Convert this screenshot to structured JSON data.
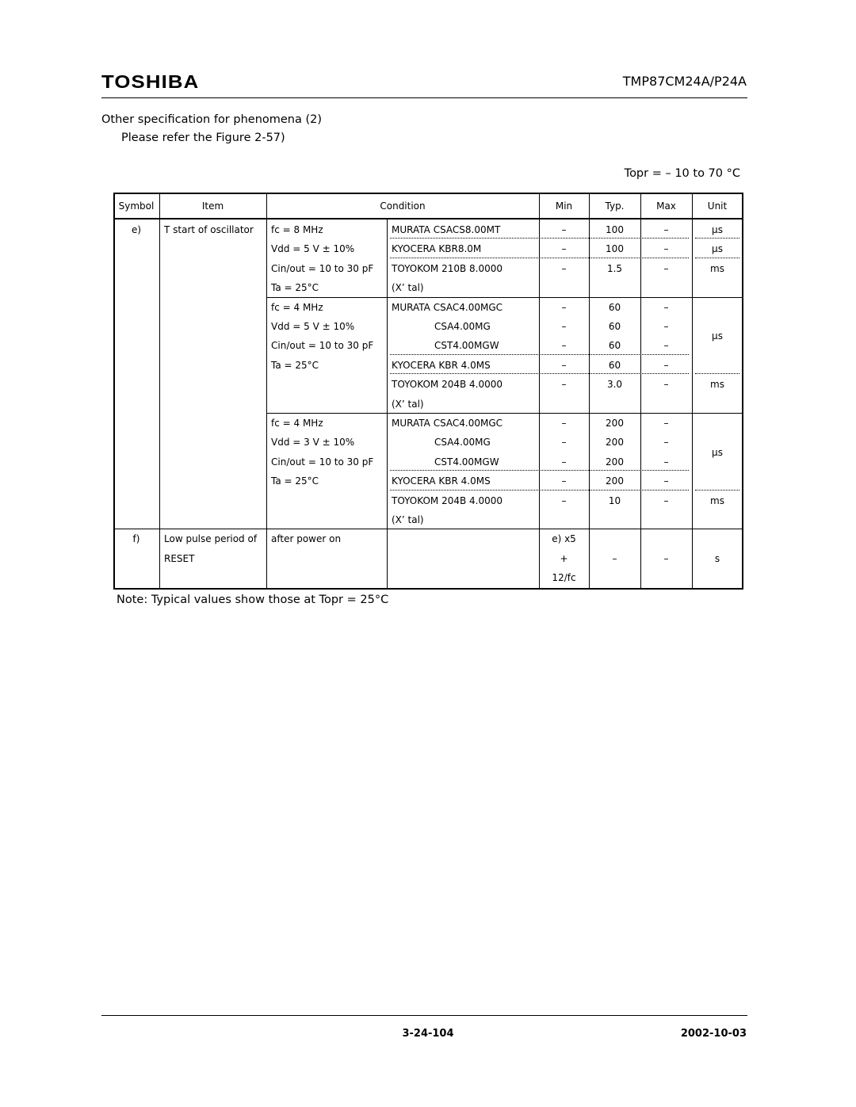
{
  "header": {
    "logo": "TOSHIBA",
    "doc_number": "TMP87CM24A/P24A"
  },
  "section": {
    "title": "Other specification for phenomena (2)",
    "reference": "Please refer the Figure 2-57)",
    "topr": "Topr =  – 10 to 70 °C"
  },
  "table": {
    "columns": [
      "Symbol",
      "Item",
      "Condition",
      "Min",
      "Typ.",
      "Max",
      "Unit"
    ],
    "rows": [
      {
        "symbol": "e)",
        "item": [
          "T start of oscillator"
        ],
        "groups": [
          {
            "conditions": [
              "fc = 8 MHz",
              "Vdd = 5 V ± 10%",
              "Cin/out = 10 to 30 pF",
              "Ta = 25°C"
            ],
            "parts": [
              {
                "name": "MURATA CSACS8.00MT",
                "min": "–",
                "typ": "100",
                "max": "–"
              },
              {
                "name": "KYOCERA KBR8.0M",
                "min": "–",
                "typ": "100",
                "max": "–"
              },
              {
                "name": "TOYOKOM 210B 8.0000",
                "min": "–",
                "typ": "1.5",
                "max": "–"
              }
            ],
            "unit_spans": [
              {
                "unit": "µs",
                "count": 1
              },
              {
                "unit": "µs",
                "count": 1
              },
              {
                "unit": "ms",
                "count": 1
              }
            ],
            "note": "(X’ tal)"
          },
          {
            "conditions": [
              "fc = 4 MHz",
              "Vdd = 5 V ± 10%",
              "Cin/out = 10 to 30 pF",
              "Ta = 25°C"
            ],
            "parts": [
              {
                "name": "MURATA CSAC4.00MGC",
                "min": "–",
                "typ": "60",
                "max": "–"
              },
              {
                "name": "CSA4.00MG",
                "min": "–",
                "typ": "60",
                "max": "–"
              },
              {
                "name": "CST4.00MGW",
                "min": "–",
                "typ": "60",
                "max": "–"
              },
              {
                "name": "KYOCERA KBR 4.0MS",
                "min": "–",
                "typ": "60",
                "max": "–"
              },
              {
                "name": "TOYOKOM 204B 4.0000",
                "min": "–",
                "typ": "3.0",
                "max": "–"
              }
            ],
            "unit_spans": [
              {
                "unit": "µs",
                "count": 4
              },
              {
                "unit": "ms",
                "count": 1
              }
            ],
            "note": "(X’ tal)"
          },
          {
            "conditions": [
              "fc = 4 MHz",
              "Vdd = 3 V ± 10%",
              "Cin/out = 10 to 30 pF",
              "Ta = 25°C"
            ],
            "parts": [
              {
                "name": "MURATA CSAC4.00MGC",
                "min": "–",
                "typ": "200",
                "max": "–"
              },
              {
                "name": "CSA4.00MG",
                "min": "–",
                "typ": "200",
                "max": "–"
              },
              {
                "name": "CST4.00MGW",
                "min": "–",
                "typ": "200",
                "max": "–"
              },
              {
                "name": "KYOCERA KBR 4.0MS",
                "min": "–",
                "typ": "200",
                "max": "–"
              },
              {
                "name": "TOYOKOM 204B 4.0000",
                "min": "–",
                "typ": "10",
                "max": "–"
              }
            ],
            "unit_spans": [
              {
                "unit": "µs",
                "count": 4
              },
              {
                "unit": "ms",
                "count": 1
              }
            ],
            "note": "(X’ tal)"
          }
        ]
      },
      {
        "symbol": "f)",
        "item": [
          "Low pulse period of",
          "RESET"
        ],
        "condition": "after power on",
        "min": [
          "e) x5",
          "+",
          "12/fc"
        ],
        "typ": "–",
        "max": "–",
        "unit": "s"
      }
    ]
  },
  "note": "Note:  Typical values show those at Topr = 25°C",
  "footer": {
    "page": "3-24-104",
    "date": "2002-10-03"
  }
}
